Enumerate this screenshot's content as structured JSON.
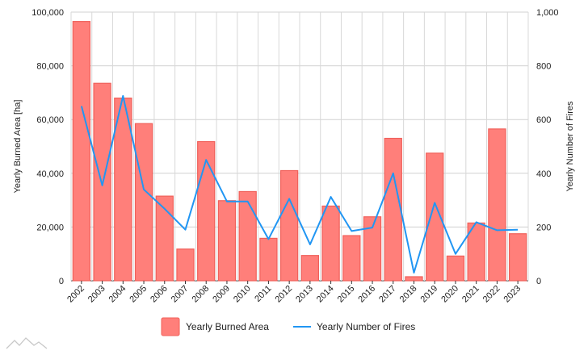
{
  "chart_data": {
    "type": "bar",
    "categories": [
      "2002",
      "2003",
      "2004",
      "2005",
      "2006",
      "2007",
      "2008",
      "2009",
      "2010",
      "2011",
      "2012",
      "2013",
      "2014",
      "2015",
      "2016",
      "2017",
      "2018",
      "2019",
      "2020",
      "2021",
      "2022",
      "2023"
    ],
    "series": [
      {
        "name": "Yearly Burned Area",
        "type": "bar",
        "axis": "left",
        "color": "#ff7f7a",
        "values": [
          96500,
          73500,
          68000,
          58500,
          31500,
          11800,
          51800,
          29800,
          33200,
          15800,
          41000,
          9400,
          27800,
          16800,
          23800,
          53000,
          1500,
          47500,
          9200,
          21500,
          56500,
          17500
        ]
      },
      {
        "name": "Yearly Number of Fires",
        "type": "line",
        "axis": "right",
        "color": "#2196f3",
        "values": [
          650,
          355,
          688,
          340,
          268,
          190,
          450,
          295,
          295,
          155,
          305,
          135,
          312,
          185,
          198,
          400,
          30,
          290,
          100,
          218,
          188,
          190
        ]
      }
    ],
    "y_left": {
      "label": "Yearly Burned Area [ha]",
      "range": [
        0,
        100000
      ],
      "ticks": [
        "0",
        "20,000",
        "40,000",
        "60,000",
        "80,000",
        "100,000"
      ]
    },
    "y_right": {
      "label": "Yearly Number of Fires",
      "range": [
        0,
        1000
      ],
      "ticks": [
        "0",
        "200",
        "400",
        "600",
        "800",
        "1,000"
      ]
    },
    "grid": true,
    "legend_position": "bottom"
  }
}
